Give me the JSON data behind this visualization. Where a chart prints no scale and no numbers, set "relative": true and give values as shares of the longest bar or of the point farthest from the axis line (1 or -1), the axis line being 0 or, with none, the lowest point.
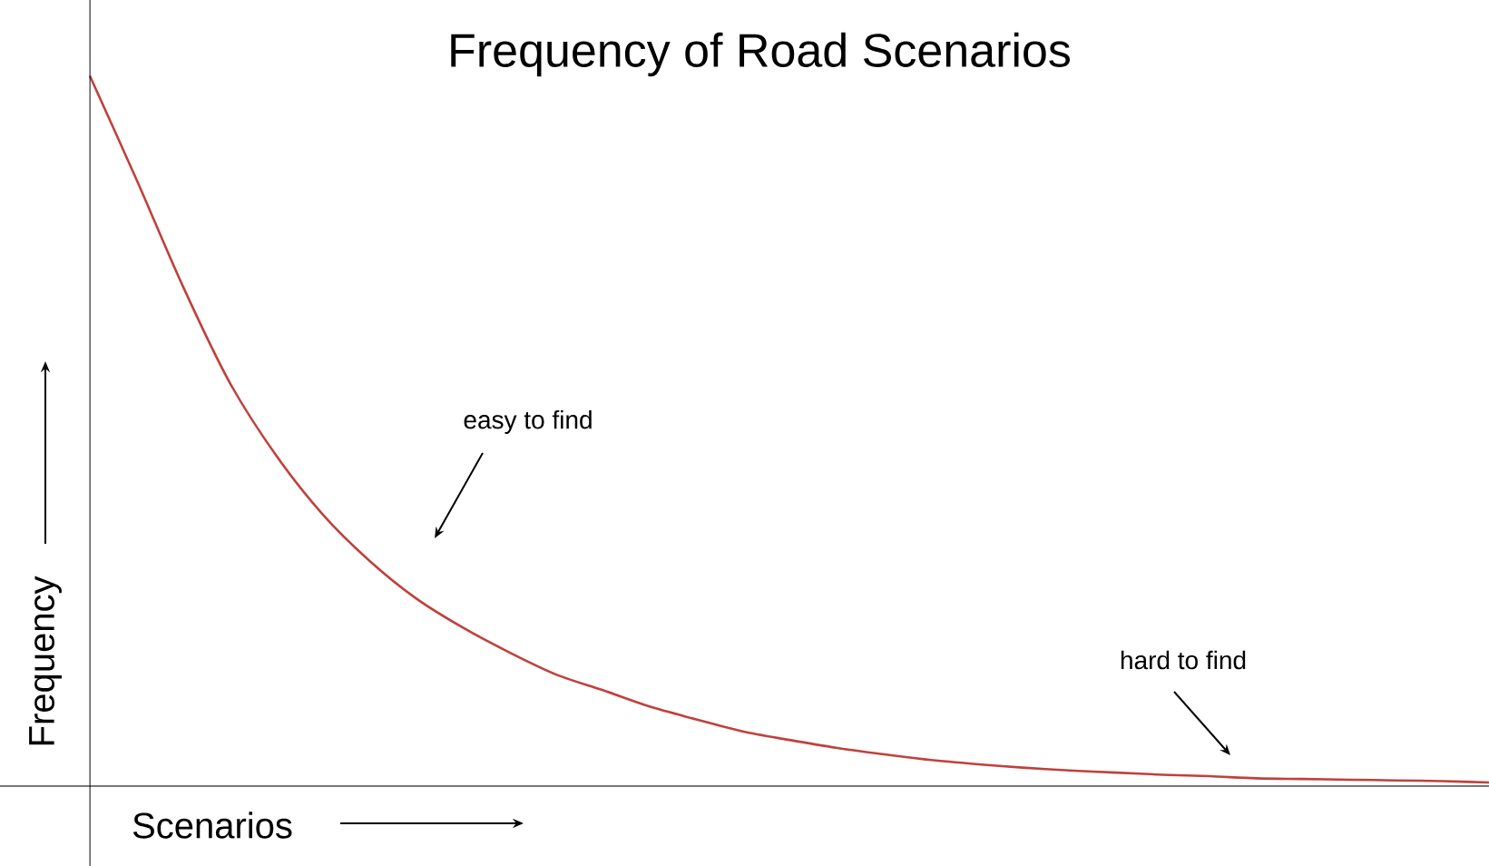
{
  "chart_data": {
    "type": "line",
    "title": "Frequency of Road Scenarios",
    "xlabel": "Scenarios",
    "ylabel": "Frequency",
    "relative": true,
    "categories": [
      null,
      null,
      null,
      null,
      null,
      null,
      null,
      null,
      null,
      null,
      null,
      null,
      null,
      null,
      null,
      null,
      null,
      null,
      null,
      null,
      null,
      null,
      null,
      null,
      null,
      null,
      null,
      null,
      null,
      null,
      null
    ],
    "series": [
      {
        "color": "#c0413c",
        "values": [
          1,
          0.854,
          0.703,
          0.568,
          0.465,
          0.382,
          0.317,
          0.264,
          0.223,
          0.188,
          0.157,
          0.135,
          0.112,
          0.094,
          0.077,
          0.065,
          0.054,
          0.045,
          0.037,
          0.031,
          0.026,
          0.022,
          0.019,
          0.016,
          0.014,
          0.011,
          0.01,
          0.009,
          0.008,
          0.007,
          0.005
        ]
      }
    ],
    "annotations": [
      "easy to find",
      "hard to find"
    ]
  }
}
